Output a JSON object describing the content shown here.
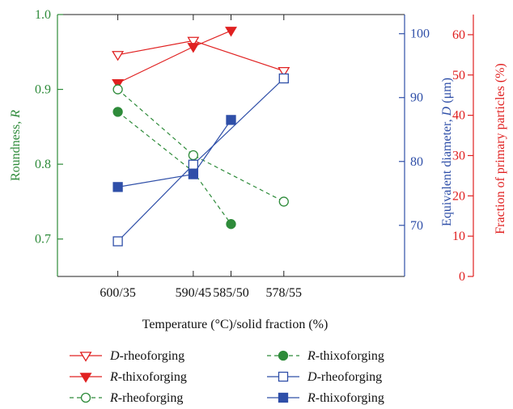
{
  "chart_data": {
    "type": "line",
    "xlabel": "Temperature (°C)/solid fraction (%)",
    "x_positions": [
      600,
      590,
      585,
      578
    ],
    "x_ticks": [
      {
        "label": "600/35",
        "x": 600
      },
      {
        "label": "590/45",
        "x": 590
      },
      {
        "label": "585/50",
        "x": 585
      },
      {
        "label": "578/55",
        "x": 578
      }
    ],
    "xlim": [
      608,
      562
    ],
    "axes": {
      "left": {
        "label_main": "Roundness, ",
        "label_var": "R",
        "color": "#2e8b3a",
        "lim": [
          0.65,
          1.0
        ],
        "ticks": [
          "0.7",
          "0.8",
          "0.9",
          "1.0"
        ],
        "tick_values": [
          0.7,
          0.8,
          0.9,
          1.0
        ]
      },
      "right_inner": {
        "label_main": "Equivalent diameter, ",
        "label_var": "D",
        "label_unit": " (μm)",
        "color": "#2f4fa8",
        "lim": [
          62,
          103
        ],
        "ticks": [
          "70",
          "80",
          "90",
          "100"
        ],
        "tick_values": [
          70,
          80,
          90,
          100
        ]
      },
      "right_outer": {
        "label": "Fraction of primary particles (%)",
        "color": "#e02020",
        "lim": [
          0,
          65
        ],
        "ticks": [
          "0",
          "10",
          "20",
          "30",
          "40",
          "50",
          "60"
        ],
        "tick_values": [
          0,
          10,
          20,
          30,
          40,
          50,
          60
        ]
      }
    },
    "series": [
      {
        "var": "D",
        "suffix": "-rheoforging",
        "axis": "right_outer",
        "color": "#e02020",
        "marker": "triangle-down-open",
        "dash": "solid",
        "x": [
          600,
          590,
          578
        ],
        "values": [
          55,
          58.5,
          51
        ],
        "legend_row": 0,
        "legend_col": 0
      },
      {
        "var": "R",
        "suffix": "-thixoforging",
        "axis": "right_outer",
        "color": "#e02020",
        "marker": "triangle-down-filled",
        "dash": "solid",
        "x": [
          600,
          590,
          585
        ],
        "values": [
          48,
          57,
          61
        ],
        "legend_row": 1,
        "legend_col": 0
      },
      {
        "var": "R",
        "suffix": "-rheoforging",
        "axis": "left",
        "color": "#2e8b3a",
        "marker": "circle-open",
        "dash": "dashed",
        "x": [
          600,
          590,
          578
        ],
        "values": [
          0.9,
          0.812,
          0.75
        ],
        "legend_row": 2,
        "legend_col": 0
      },
      {
        "var": "R",
        "suffix": "-thixoforging",
        "axis": "left",
        "color": "#2e8b3a",
        "marker": "circle-filled",
        "dash": "dashed",
        "x": [
          600,
          590,
          585
        ],
        "values": [
          0.87,
          0.79,
          0.72
        ],
        "legend_row": 0,
        "legend_col": 1
      },
      {
        "var": "D",
        "suffix": "-rheoforging",
        "axis": "right_inner",
        "color": "#2f4fa8",
        "marker": "square-open",
        "dash": "solid",
        "x": [
          600,
          590,
          578
        ],
        "values": [
          67.5,
          79.5,
          93
        ],
        "legend_row": 1,
        "legend_col": 1
      },
      {
        "var": "R",
        "suffix": "-thixoforging",
        "axis": "right_inner",
        "color": "#2f4fa8",
        "marker": "square-filled",
        "dash": "solid",
        "x": [
          600,
          590,
          585
        ],
        "values": [
          76,
          78,
          86.5
        ],
        "legend_row": 2,
        "legend_col": 1
      }
    ]
  }
}
